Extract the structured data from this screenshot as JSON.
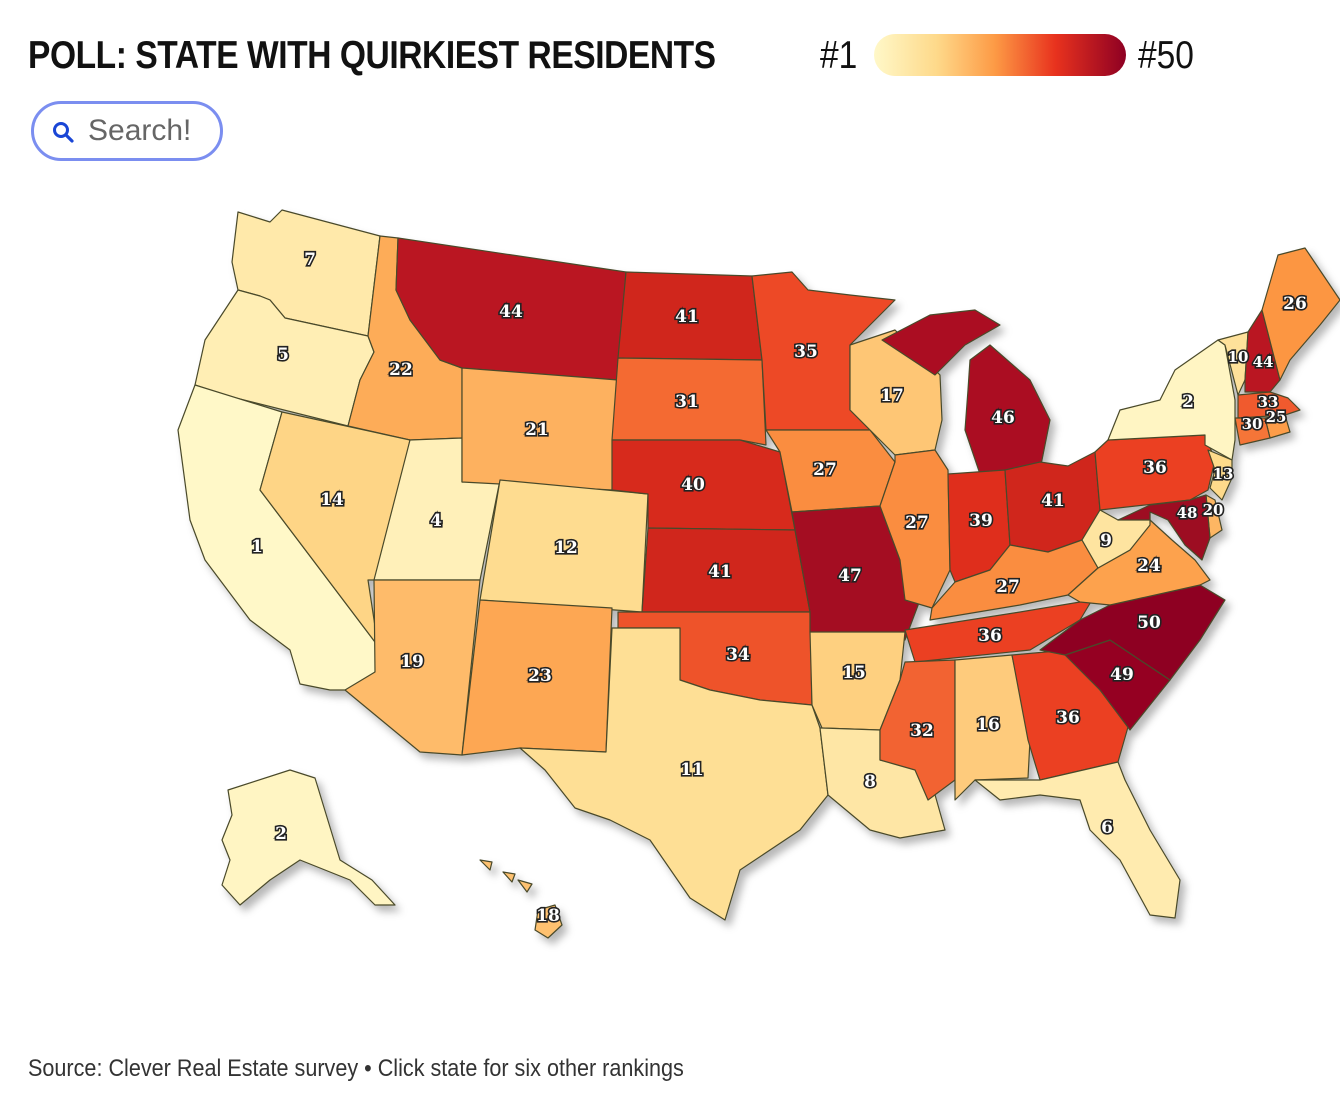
{
  "title": "POLL: STATE WITH QUIRKIEST RESIDENTS",
  "legend": {
    "low_label": "#1",
    "high_label": "#50",
    "colors": [
      "#fff8c8",
      "#fed98a",
      "#fd9a45",
      "#e8321e",
      "#8e0023"
    ]
  },
  "search": {
    "placeholder": "Search!",
    "icon": "search-icon",
    "accent": "#7b8ef0",
    "icon_color": "#1a46d6"
  },
  "footer": "Source: Clever Real Estate survey • Click state for six other rankings",
  "map_data": {
    "type": "choropleth",
    "scale": "rank 1 to 50 (light to dark)",
    "states": [
      {
        "id": "wa",
        "rank": "7"
      },
      {
        "id": "or",
        "rank": "5"
      },
      {
        "id": "ca",
        "rank": "1"
      },
      {
        "id": "id",
        "rank": "22"
      },
      {
        "id": "nv",
        "rank": "14"
      },
      {
        "id": "ut",
        "rank": "4"
      },
      {
        "id": "az",
        "rank": "19"
      },
      {
        "id": "mt",
        "rank": "44"
      },
      {
        "id": "wy",
        "rank": "21"
      },
      {
        "id": "co",
        "rank": "12"
      },
      {
        "id": "nm",
        "rank": "23"
      },
      {
        "id": "nd",
        "rank": "41"
      },
      {
        "id": "sd",
        "rank": "31"
      },
      {
        "id": "ne",
        "rank": "40"
      },
      {
        "id": "ks",
        "rank": "41"
      },
      {
        "id": "ok",
        "rank": "34"
      },
      {
        "id": "tx",
        "rank": "11"
      },
      {
        "id": "mn",
        "rank": "35"
      },
      {
        "id": "ia",
        "rank": "27"
      },
      {
        "id": "mo",
        "rank": "47"
      },
      {
        "id": "ar",
        "rank": "15"
      },
      {
        "id": "la",
        "rank": "8"
      },
      {
        "id": "wi",
        "rank": "17"
      },
      {
        "id": "il",
        "rank": "27"
      },
      {
        "id": "mi",
        "rank": "46"
      },
      {
        "id": "in",
        "rank": "39"
      },
      {
        "id": "oh",
        "rank": "41"
      },
      {
        "id": "ky",
        "rank": "27"
      },
      {
        "id": "tn",
        "rank": "36"
      },
      {
        "id": "ms",
        "rank": "32"
      },
      {
        "id": "al",
        "rank": "16"
      },
      {
        "id": "ga",
        "rank": "36"
      },
      {
        "id": "fl",
        "rank": "6"
      },
      {
        "id": "sc",
        "rank": "49"
      },
      {
        "id": "nc",
        "rank": "50"
      },
      {
        "id": "va",
        "rank": "24"
      },
      {
        "id": "wv",
        "rank": "9"
      },
      {
        "id": "pa",
        "rank": "36"
      },
      {
        "id": "ny",
        "rank": "2"
      },
      {
        "id": "vt",
        "rank": "10"
      },
      {
        "id": "nh",
        "rank": "44"
      },
      {
        "id": "me",
        "rank": "26"
      },
      {
        "id": "ma",
        "rank": "33"
      },
      {
        "id": "ri",
        "rank": "25"
      },
      {
        "id": "ct",
        "rank": "30"
      },
      {
        "id": "nj",
        "rank": "13"
      },
      {
        "id": "de",
        "rank": "20"
      },
      {
        "id": "md",
        "rank": "48"
      },
      {
        "id": "ak",
        "rank": "2"
      },
      {
        "id": "hi",
        "rank": "18"
      }
    ]
  }
}
